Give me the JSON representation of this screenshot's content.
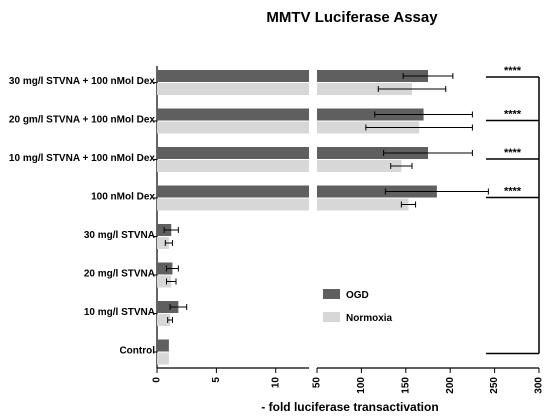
{
  "chart_data": {
    "type": "bar",
    "orientation": "horizontal",
    "title": "MMTV Luciferase Assay",
    "xlabel": "- fold luciferase transactivation",
    "ylabel": "",
    "categories": [
      "30 mg/l STVNA + 100 nMol Dex",
      "20 gm/l STVNA + 100 nMol Dex",
      "10 mg/l STVNA + 100 nMol Dex",
      "100 nMol Dex",
      "30 mg/l STVNA",
      "20 mg/l STVNA",
      "10 mg/l STVNA",
      "Control"
    ],
    "series": [
      {
        "name": "OGD",
        "color": "#5f5f5f",
        "values": [
          175,
          170,
          175,
          185,
          1.2,
          1.3,
          1.8,
          1.0
        ],
        "errors": [
          28,
          55,
          50,
          58,
          0.6,
          0.5,
          0.7,
          0
        ]
      },
      {
        "name": "Normoxia",
        "color": "#d7d7d7",
        "values": [
          157,
          165,
          145,
          153,
          1.0,
          1.2,
          1.1,
          1.0
        ],
        "errors": [
          38,
          60,
          12,
          8,
          0.3,
          0.4,
          0.2,
          0
        ]
      }
    ],
    "axis_segments": [
      {
        "range": [
          0,
          12.8
        ],
        "ticks": [
          0,
          5,
          10
        ]
      },
      {
        "range": [
          50,
          300
        ],
        "ticks": [
          50,
          100,
          150,
          200,
          250,
          300
        ]
      }
    ],
    "significance": [
      {
        "label": "****",
        "category": "30 mg/l STVNA + 100 nMol Dex"
      },
      {
        "label": "****",
        "category": "20 gm/l STVNA + 100 nMol Dex"
      },
      {
        "label": "****",
        "category": "10 mg/l STVNA + 100 nMol Dex"
      },
      {
        "label": "****",
        "category": "100 nMol Dex"
      }
    ],
    "legend": {
      "position": "right-middle",
      "entries": [
        "OGD",
        "Normoxia"
      ]
    },
    "grid": false
  }
}
